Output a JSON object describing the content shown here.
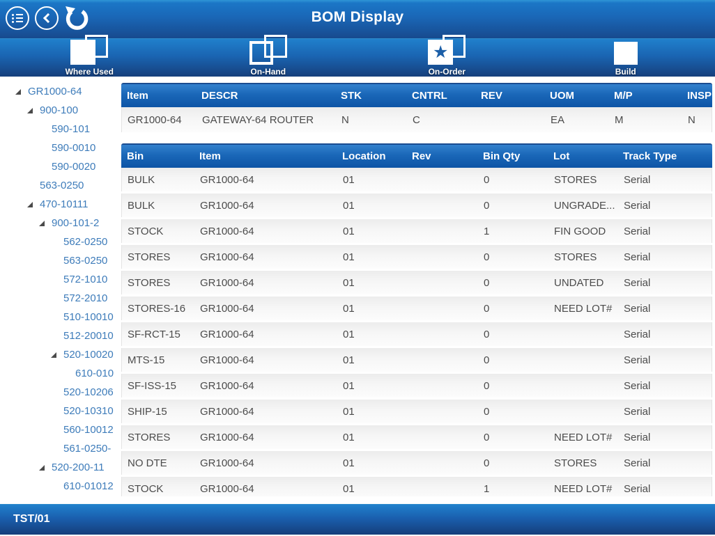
{
  "header": {
    "title": "BOM Display"
  },
  "toolbar": {
    "items": [
      {
        "label": "Where Used",
        "icon": "where-used-icon"
      },
      {
        "label": "On-Hand",
        "icon": "on-hand-icon"
      },
      {
        "label": "On-Order",
        "icon": "on-order-icon"
      },
      {
        "label": "Build",
        "icon": "build-icon"
      }
    ]
  },
  "tree": {
    "items": [
      {
        "label": "GR1000-64",
        "level": 0,
        "expanded": true
      },
      {
        "label": "900-100",
        "level": 1,
        "expanded": true
      },
      {
        "label": "590-101",
        "level": 2,
        "expanded": false
      },
      {
        "label": "590-0010",
        "level": 2,
        "expanded": false
      },
      {
        "label": "590-0020",
        "level": 2,
        "expanded": false
      },
      {
        "label": "563-0250",
        "level": 1,
        "expanded": false
      },
      {
        "label": "470-10111",
        "level": 1,
        "expanded": true
      },
      {
        "label": "900-101-2",
        "level": 2,
        "expanded": true
      },
      {
        "label": "562-0250",
        "level": 3,
        "expanded": false
      },
      {
        "label": "563-0250",
        "level": 3,
        "expanded": false
      },
      {
        "label": "572-1010",
        "level": 3,
        "expanded": false
      },
      {
        "label": "572-2010",
        "level": 3,
        "expanded": false
      },
      {
        "label": "510-10010",
        "level": 3,
        "expanded": false
      },
      {
        "label": "512-20010",
        "level": 3,
        "expanded": false
      },
      {
        "label": "520-10020",
        "level": 3,
        "expanded": true
      },
      {
        "label": "610-010",
        "level": 4,
        "expanded": false
      },
      {
        "label": "520-10206",
        "level": 3,
        "expanded": false
      },
      {
        "label": "520-10310",
        "level": 3,
        "expanded": false
      },
      {
        "label": "560-10012",
        "level": 3,
        "expanded": false
      },
      {
        "label": "561-0250-",
        "level": 3,
        "expanded": false
      },
      {
        "label": "520-200-11",
        "level": 2,
        "expanded": true
      },
      {
        "label": "610-01012",
        "level": 3,
        "expanded": false
      }
    ]
  },
  "item_table": {
    "columns": [
      "Item",
      "DESCR",
      "STK",
      "CNTRL",
      "REV",
      "UOM",
      "M/P",
      "INSP"
    ],
    "rows": [
      [
        "GR1000-64",
        "GATEWAY-64 ROUTER",
        "N",
        "C",
        "",
        "EA",
        "M",
        "N"
      ]
    ]
  },
  "bin_table": {
    "columns": [
      "Bin",
      "Item",
      "Location",
      "Rev",
      "Bin Qty",
      "Lot",
      "Track Type"
    ],
    "rows": [
      [
        "BULK",
        "GR1000-64",
        "01",
        "",
        "0",
        "STORES",
        "Serial"
      ],
      [
        "BULK",
        "GR1000-64",
        "01",
        "",
        "0",
        "UNGRADE...",
        "Serial"
      ],
      [
        "STOCK",
        "GR1000-64",
        "01",
        "",
        "1",
        "FIN GOOD",
        "Serial"
      ],
      [
        "STORES",
        "GR1000-64",
        "01",
        "",
        "0",
        "STORES",
        "Serial"
      ],
      [
        "STORES",
        "GR1000-64",
        "01",
        "",
        "0",
        "UNDATED",
        "Serial"
      ],
      [
        "STORES-16",
        "GR1000-64",
        "01",
        "",
        "0",
        "NEED LOT#",
        "Serial"
      ],
      [
        "SF-RCT-15",
        "GR1000-64",
        "01",
        "",
        "0",
        "",
        "Serial"
      ],
      [
        "MTS-15",
        "GR1000-64",
        "01",
        "",
        "0",
        "",
        "Serial"
      ],
      [
        "SF-ISS-15",
        "GR1000-64",
        "01",
        "",
        "0",
        "",
        "Serial"
      ],
      [
        "SHIP-15",
        "GR1000-64",
        "01",
        "",
        "0",
        "",
        "Serial"
      ],
      [
        "STORES",
        "GR1000-64",
        "01",
        "",
        "0",
        "NEED LOT#",
        "Serial"
      ],
      [
        "NO DTE",
        "GR1000-64",
        "01",
        "",
        "0",
        "STORES",
        "Serial"
      ],
      [
        "STOCK",
        "GR1000-64",
        "01",
        "",
        "1",
        "NEED LOT#",
        "Serial"
      ]
    ]
  },
  "status_bar": {
    "text": "TST/01"
  },
  "colors": {
    "bar_blue_top": "#2080cc",
    "bar_blue_bottom": "#163f7c",
    "table_header_top": "#3381cd",
    "table_header_bottom": "#0d54a6",
    "tree_text": "#3e7cba",
    "row_text": "#4b4b4b",
    "star_blue": "#1c5fa8"
  }
}
